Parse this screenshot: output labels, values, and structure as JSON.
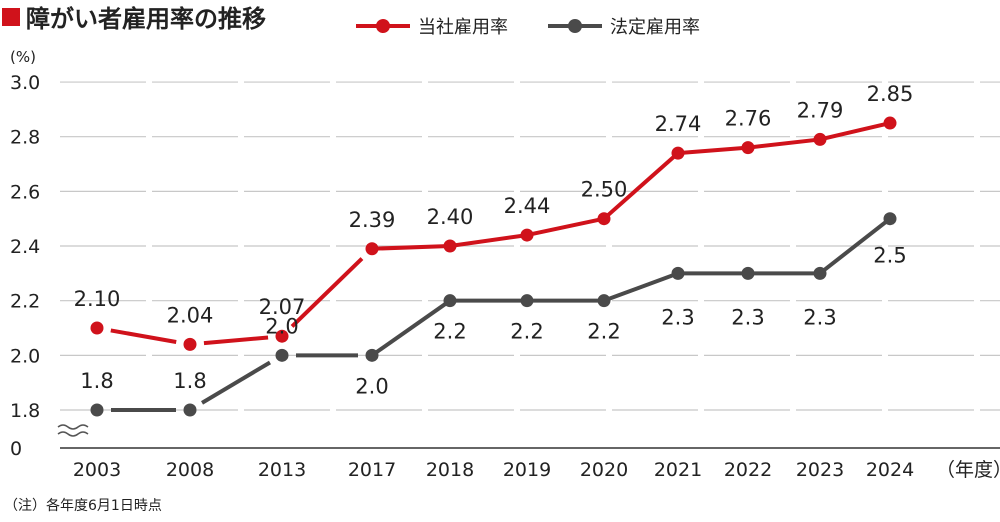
{
  "title": "障がい者雇用率の推移",
  "legend": [
    {
      "label": "当社雇用率",
      "color": "#d0121b"
    },
    {
      "label": "法定雇用率",
      "color": "#4a4a4a"
    }
  ],
  "y_unit": "(%)",
  "x_unit": "（年度）",
  "note": "（注）各年度6月1日時点",
  "chart_data": {
    "type": "line",
    "title": "障がい者雇用率の推移",
    "xlabel": "（年度）",
    "ylabel": "(%)",
    "categories": [
      "2003",
      "2008",
      "2013",
      "2017",
      "2018",
      "2019",
      "2020",
      "2021",
      "2022",
      "2023",
      "2024"
    ],
    "y_ticks": [
      "3.0",
      "2.8",
      "2.6",
      "2.4",
      "2.2",
      "2.0",
      "1.8",
      "0"
    ],
    "ylim": [
      1.8,
      3.0
    ],
    "axis_break": true,
    "grid": true,
    "legend_position": "top",
    "series": [
      {
        "name": "当社雇用率",
        "color": "#d0121b",
        "values": [
          2.1,
          2.04,
          2.07,
          2.39,
          2.4,
          2.44,
          2.5,
          2.74,
          2.76,
          2.79,
          2.85
        ],
        "labels": [
          "2.10",
          "2.04",
          "2.07",
          "2.39",
          "2.40",
          "2.44",
          "2.50",
          "2.74",
          "2.76",
          "2.79",
          "2.85"
        ]
      },
      {
        "name": "法定雇用率",
        "color": "#4a4a4a",
        "values": [
          1.8,
          1.8,
          2.0,
          2.0,
          2.2,
          2.2,
          2.2,
          2.3,
          2.3,
          2.3,
          2.5
        ],
        "labels": [
          "1.8",
          "1.8",
          "2.0",
          "2.0",
          "2.2",
          "2.2",
          "2.2",
          "2.3",
          "2.3",
          "2.3",
          "2.5"
        ]
      }
    ]
  }
}
